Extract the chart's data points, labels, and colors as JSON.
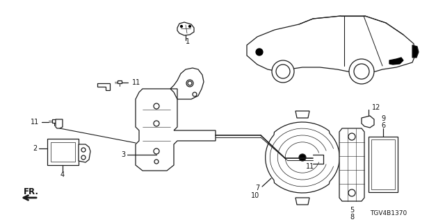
{
  "background_color": "#ffffff",
  "part_number_text": "TGV4B1370",
  "fr_label": "FR.",
  "line_color": "#1a1a1a",
  "text_color": "#111111",
  "font_size": 7.0,
  "fig_w": 6.4,
  "fig_h": 3.2,
  "dpi": 100
}
